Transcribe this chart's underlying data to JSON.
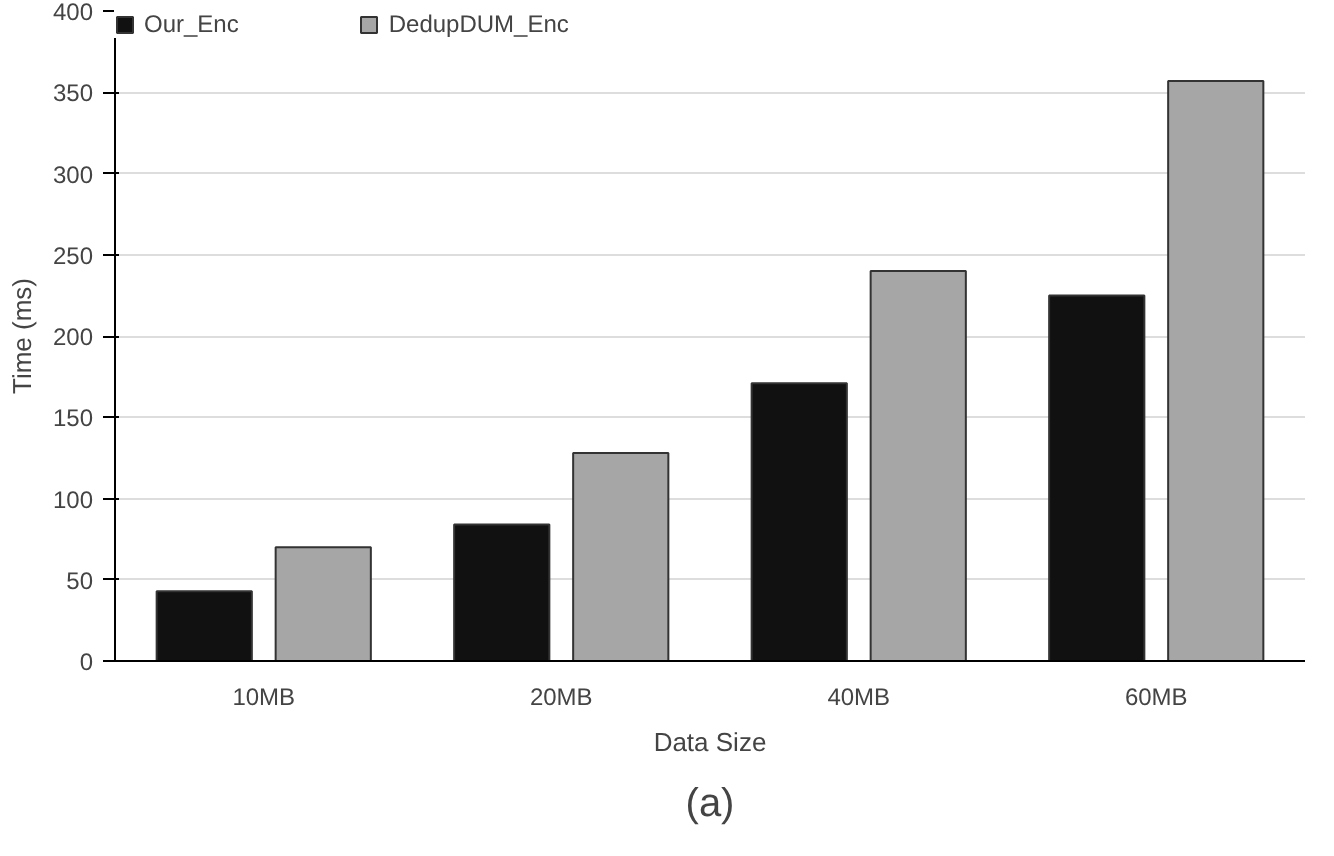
{
  "chart_data": {
    "type": "bar",
    "xlabel": "Data Size",
    "ylabel": "Time (ms)",
    "categories": [
      "10MB",
      "20MB",
      "40MB",
      "60MB"
    ],
    "series": [
      {
        "name": "Our_Enc",
        "color": "#111111",
        "values": [
          43,
          84,
          171,
          225
        ]
      },
      {
        "name": "DedupDUM_Enc",
        "color": "#a6a6a6",
        "values": [
          70,
          128,
          240,
          357
        ]
      }
    ],
    "ylim": [
      0,
      400
    ],
    "yticks": [
      0,
      50,
      100,
      150,
      200,
      250,
      300,
      350,
      400
    ],
    "grid": "y",
    "legend": "top left",
    "annotations": [
      "(a)"
    ]
  }
}
